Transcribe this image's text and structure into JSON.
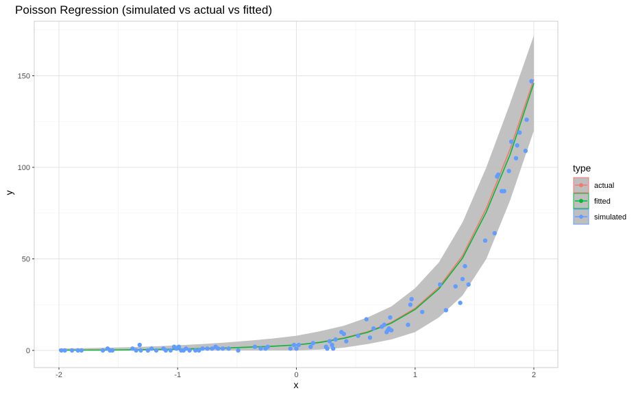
{
  "chart_data": {
    "type": "scatter",
    "title": "Poisson Regression (simulated vs actual vs fitted)",
    "xlabel": "x",
    "ylabel": "y",
    "xlim": [
      -2.2,
      2.2
    ],
    "ylim": [
      -8,
      175
    ],
    "x_ticks": [
      -2,
      -1,
      0,
      1,
      2
    ],
    "x_tick_labels": [
      "-2",
      "-1",
      "0",
      "1",
      "2"
    ],
    "y_ticks": [
      0,
      50,
      100,
      150
    ],
    "y_tick_labels": [
      "0",
      "50",
      "100",
      "150"
    ],
    "grid": true,
    "legend": {
      "title": "type",
      "position": "right",
      "entries": [
        "actual",
        "fitted",
        "simulated"
      ]
    },
    "colors": {
      "actual": "#F8766D",
      "fitted": "#00BA38",
      "simulated": "#619CFF",
      "band": "#bebebe"
    },
    "series": [
      {
        "name": "actual",
        "kind": "line",
        "x": [
          -2,
          -1.8,
          -1.6,
          -1.4,
          -1.2,
          -1,
          -0.8,
          -0.6,
          -0.4,
          -0.2,
          0,
          0.2,
          0.4,
          0.6,
          0.8,
          1,
          1.2,
          1.4,
          1.6,
          1.8,
          2
        ],
        "y": [
          0.1,
          0.2,
          0.2,
          0.3,
          0.5,
          0.7,
          1.0,
          1.3,
          1.8,
          2.3,
          3.0,
          4.5,
          6.8,
          10.2,
          15.3,
          23.0,
          34.5,
          51.8,
          77.7,
          110.0,
          148.0
        ]
      },
      {
        "name": "fitted",
        "kind": "line",
        "x": [
          -2,
          -1.8,
          -1.6,
          -1.4,
          -1.2,
          -1,
          -0.8,
          -0.6,
          -0.4,
          -0.2,
          0,
          0.2,
          0.4,
          0.6,
          0.8,
          1,
          1.2,
          1.4,
          1.6,
          1.8,
          2
        ],
        "y": [
          0.1,
          0.2,
          0.2,
          0.3,
          0.5,
          0.7,
          1.0,
          1.3,
          1.8,
          2.3,
          3.0,
          4.4,
          6.6,
          9.9,
          14.9,
          22.4,
          33.6,
          50.4,
          75.6,
          107.0,
          146.0
        ],
        "ci_low": [
          0,
          0,
          0,
          0,
          0,
          0,
          0,
          0,
          0,
          0,
          0,
          0.5,
          1.5,
          3.5,
          6.0,
          10.0,
          18.0,
          30.0,
          50.0,
          82.0,
          120.0
        ],
        "ci_high": [
          1.0,
          1.2,
          1.5,
          1.8,
          2.2,
          2.8,
          3.5,
          4.3,
          5.3,
          6.5,
          8.0,
          10.5,
          13.5,
          18.0,
          24.0,
          34.0,
          48.0,
          70.0,
          100.0,
          135.0,
          172.0
        ]
      },
      {
        "name": "simulated",
        "kind": "points",
        "x": [
          -1.98,
          -1.95,
          -1.89,
          -1.84,
          -1.81,
          -1.63,
          -1.59,
          -1.57,
          -1.55,
          -1.38,
          -1.35,
          -1.32,
          -1.31,
          -1.25,
          -1.22,
          -1.18,
          -1.12,
          -1.1,
          -1.06,
          -1.03,
          -1.01,
          -0.99,
          -0.97,
          -0.95,
          -0.93,
          -0.9,
          -0.85,
          -0.82,
          -0.79,
          -0.75,
          -0.71,
          -0.68,
          -0.66,
          -0.62,
          -0.57,
          -0.49,
          -0.35,
          -0.3,
          -0.26,
          -0.24,
          -0.05,
          -0.02,
          0,
          0.02,
          0.12,
          0.14,
          0.25,
          0.26,
          0.28,
          0.3,
          0.31,
          0.33,
          0.38,
          0.4,
          0.42,
          0.52,
          0.59,
          0.62,
          0.65,
          0.72,
          0.74,
          0.76,
          0.77,
          0.78,
          0.79,
          0.8,
          0.94,
          0.96,
          0.97,
          1.06,
          1.21,
          1.26,
          1.34,
          1.38,
          1.4,
          1.42,
          1.45,
          1.59,
          1.67,
          1.69,
          1.7,
          1.73,
          1.75,
          1.79,
          1.81,
          1.85,
          1.86,
          1.88,
          1.93,
          1.94,
          1.98
        ],
        "y": [
          0,
          0,
          0,
          0,
          0,
          0,
          1,
          0,
          0,
          1,
          0,
          3,
          0,
          0,
          1,
          0,
          1,
          0,
          0,
          2,
          1,
          2,
          0,
          0,
          1,
          0,
          0,
          0,
          1,
          1,
          1,
          2,
          1,
          1,
          1,
          0,
          2,
          1,
          1,
          2,
          1,
          3,
          1,
          3,
          2,
          4,
          2,
          1,
          5,
          3,
          1,
          6,
          10,
          9,
          5,
          8,
          17,
          7,
          12,
          13,
          14,
          10,
          11,
          12,
          18,
          11,
          14,
          25,
          28,
          21,
          36,
          22,
          35,
          26,
          39,
          46,
          36,
          60,
          64,
          95,
          96,
          87,
          87,
          98,
          114,
          105,
          112,
          119,
          109,
          126,
          147
        ]
      }
    ]
  }
}
